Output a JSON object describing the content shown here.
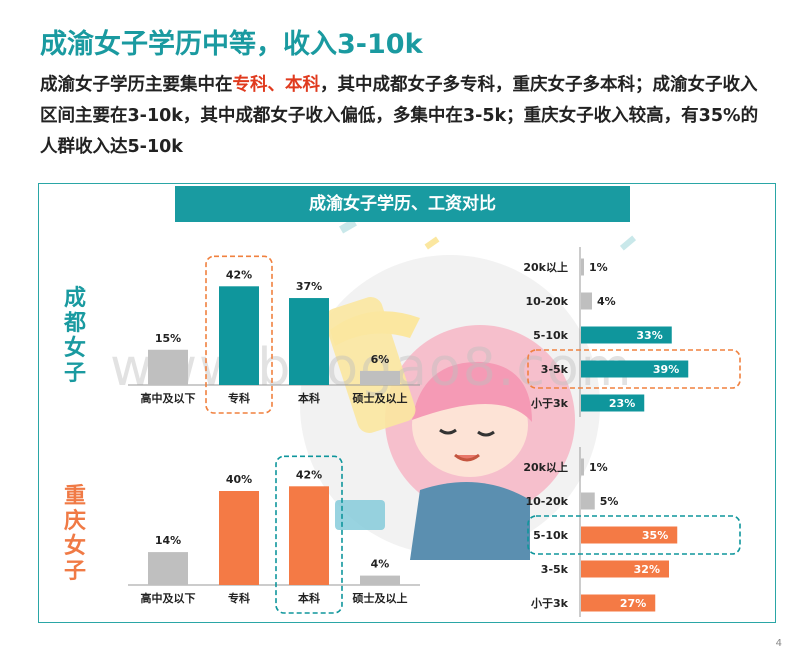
{
  "title": "成渝女子学历中等，收入3-10k",
  "summary": {
    "p1": "成渝女子学历主要集中在",
    "hl": "专科、本科",
    "p2": "，其中成都女子多专科，重庆女子多本科；成渝女子收入区间主要在3-10k，其中成都女子收入偏低，多集中在3-5k；重庆女子收入较高，有35%的人群收入达5-10k"
  },
  "panel_title": "成渝女子学历、工资对比",
  "cities": {
    "chengdu": "成都女子",
    "chongqing": "重庆女子"
  },
  "watermark": "www.baogao8.com",
  "page_number": "4",
  "colors": {
    "teal": "#0f969c",
    "orange": "#f47a45",
    "gray": "#bfbfbf"
  },
  "chart_data": [
    {
      "type": "bar",
      "group": "成都女子 学历",
      "categories": [
        "高中及以下",
        "专科",
        "本科",
        "硕士及以上"
      ],
      "values": [
        15,
        42,
        37,
        6
      ],
      "value_labels": [
        "15%",
        "42%",
        "37%",
        "6%"
      ],
      "highlight": [
        false,
        true,
        false,
        false
      ],
      "color": "#0f969c",
      "ylim": [
        0,
        45
      ]
    },
    {
      "type": "bar",
      "group": "成都女子 收入",
      "orientation": "horizontal",
      "categories": [
        "20k以上",
        "10-20k",
        "5-10k",
        "3-5k",
        "小于3k"
      ],
      "values": [
        1,
        4,
        33,
        39,
        23
      ],
      "value_labels": [
        "1%",
        "4%",
        "33%",
        "39%",
        "23%"
      ],
      "colored": [
        false,
        false,
        true,
        true,
        true
      ],
      "highlight": [
        false,
        false,
        false,
        true,
        false
      ],
      "color": "#0f969c",
      "xlim": [
        0,
        45
      ]
    },
    {
      "type": "bar",
      "group": "重庆女子 学历",
      "categories": [
        "高中及以下",
        "专科",
        "本科",
        "硕士及以上"
      ],
      "values": [
        14,
        40,
        42,
        4
      ],
      "value_labels": [
        "14%",
        "40%",
        "42%",
        "4%"
      ],
      "highlight": [
        false,
        false,
        true,
        false
      ],
      "color": "#f47a45",
      "ylim": [
        0,
        45
      ]
    },
    {
      "type": "bar",
      "group": "重庆女子 收入",
      "orientation": "horizontal",
      "categories": [
        "20k以上",
        "10-20k",
        "5-10k",
        "3-5k",
        "小于3k"
      ],
      "values": [
        1,
        5,
        35,
        32,
        27
      ],
      "value_labels": [
        "1%",
        "5%",
        "35%",
        "32%",
        "27%"
      ],
      "colored": [
        false,
        false,
        true,
        true,
        true
      ],
      "highlight": [
        false,
        false,
        true,
        false,
        false
      ],
      "color": "#f47a45",
      "xlim": [
        0,
        45
      ]
    }
  ]
}
